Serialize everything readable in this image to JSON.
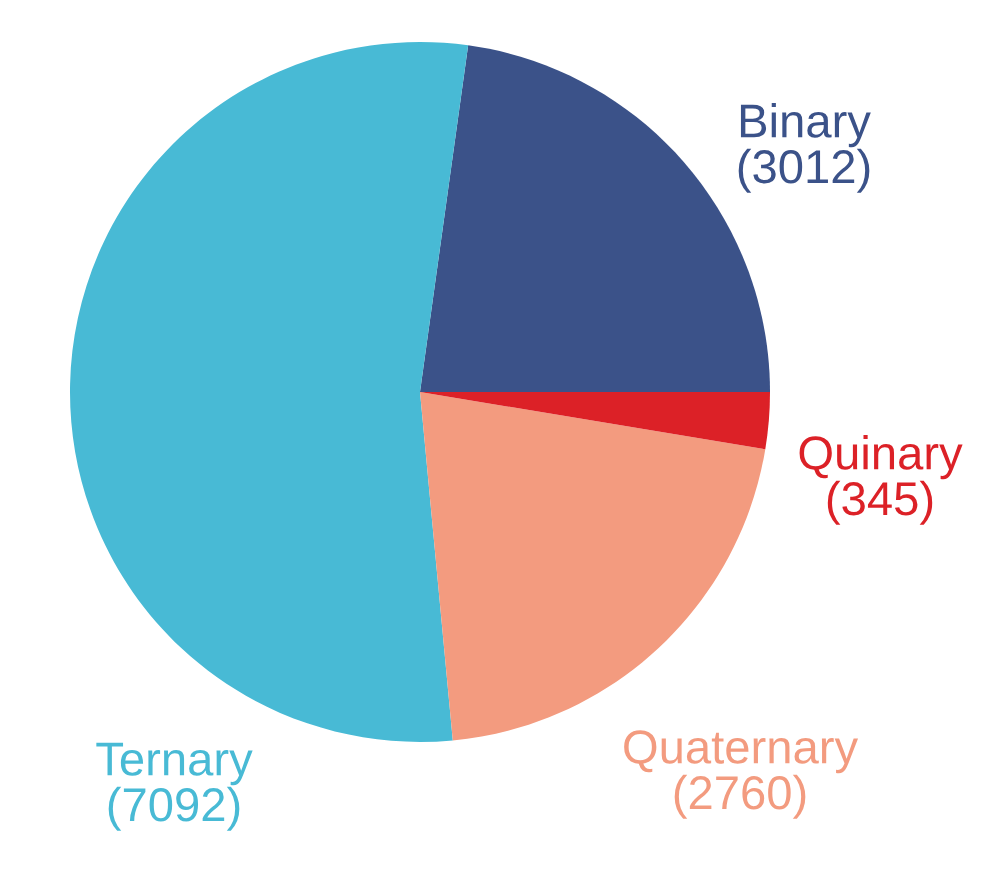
{
  "chart_data": {
    "type": "pie",
    "categories": [
      "Binary",
      "Ternary",
      "Quaternary",
      "Quinary"
    ],
    "values": [
      3012,
      7092,
      2760,
      345
    ],
    "colors": [
      "#3b5289",
      "#48bad5",
      "#f39b7f",
      "#dc2127"
    ],
    "value_labels": [
      "(3012)",
      "(7092)",
      "(2760)",
      "(345)"
    ]
  }
}
